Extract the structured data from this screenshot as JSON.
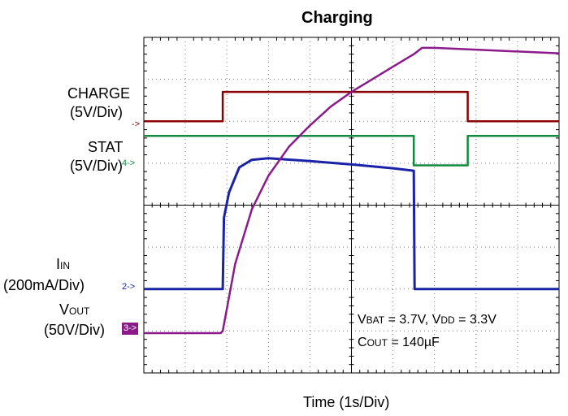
{
  "chart_data": {
    "type": "line",
    "title": "Charging",
    "xlabel": "Time (1s/Div)",
    "x_divisions": 10,
    "y_divisions": 8,
    "series": [
      {
        "name": "CHARGE",
        "color": "#8b0000",
        "points": [
          [
            0,
            6.0
          ],
          [
            1.9,
            6.0
          ],
          [
            1.9,
            6.7
          ],
          [
            7.8,
            6.7
          ],
          [
            7.8,
            6.0
          ],
          [
            10,
            6.0
          ]
        ]
      },
      {
        "name": "STAT",
        "color": "#138a3e",
        "points": [
          [
            0,
            5.65
          ],
          [
            6.5,
            5.65
          ],
          [
            6.5,
            4.95
          ],
          [
            7.8,
            4.95
          ],
          [
            7.8,
            5.65
          ],
          [
            10,
            5.65
          ]
        ]
      },
      {
        "name": "IIN",
        "color": "#1a22a6",
        "points": [
          [
            0,
            2.0
          ],
          [
            1.9,
            2.0
          ],
          [
            1.93,
            3.7
          ],
          [
            2.05,
            4.3
          ],
          [
            2.3,
            4.9
          ],
          [
            2.6,
            5.08
          ],
          [
            3.0,
            5.12
          ],
          [
            4.0,
            5.05
          ],
          [
            5.0,
            4.97
          ],
          [
            6.0,
            4.88
          ],
          [
            6.5,
            4.82
          ],
          [
            6.52,
            2.0
          ],
          [
            10,
            2.0
          ]
        ]
      },
      {
        "name": "VOUT",
        "color": "#8b1a8b",
        "points": [
          [
            0,
            0.95
          ],
          [
            1.85,
            0.95
          ],
          [
            1.9,
            1.0
          ],
          [
            2.2,
            2.6
          ],
          [
            2.6,
            3.9
          ],
          [
            3.0,
            4.7
          ],
          [
            3.5,
            5.4
          ],
          [
            4.0,
            5.9
          ],
          [
            4.5,
            6.35
          ],
          [
            5.0,
            6.7
          ],
          [
            5.5,
            7.0
          ],
          [
            6.0,
            7.3
          ],
          [
            6.5,
            7.6
          ],
          [
            6.7,
            7.75
          ],
          [
            7.0,
            7.75
          ],
          [
            10,
            7.62
          ]
        ]
      }
    ],
    "channel_labels": [
      {
        "line1": "CHARGE",
        "line2": "(5V/Div)",
        "marker": "->"
      },
      {
        "line1": "STAT",
        "line2": "(5V/Div)",
        "marker": "4->"
      },
      {
        "line1": "I",
        "sub": "IN",
        "line2": "(200mA/Div)",
        "marker": "2->"
      },
      {
        "line1": "V",
        "sub": "OUT",
        "line2": "(50V/Div)",
        "marker": "3->"
      }
    ],
    "annotations": {
      "vbat_sym": "V",
      "vbat_sub": "BAT",
      "vbat_val": " = 3.7V, ",
      "vdd_sym": "V",
      "vdd_sub": "DD",
      "vdd_val": " = 3.3V",
      "cout_sym": "C",
      "cout_sub": "OUT",
      "cout_val": " = 140µF"
    },
    "grid": true
  }
}
